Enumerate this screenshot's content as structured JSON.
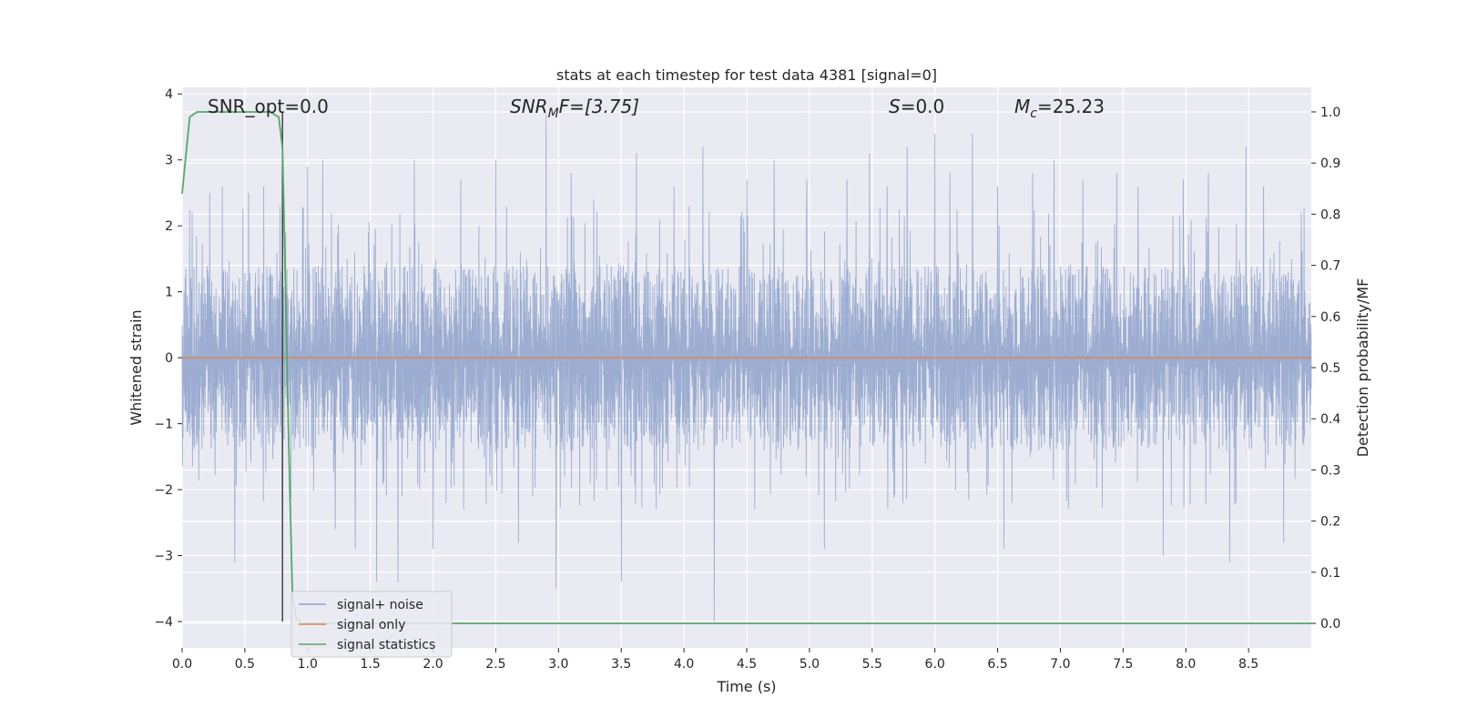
{
  "chart_data": {
    "type": "line",
    "title": "stats at each timestep for test data 4381 [signal=0]",
    "xlabel": "Time (s)",
    "ylabel": "Whitened strain",
    "ylabel_right": "Detection probability/MF",
    "xlim": [
      0.0,
      9.0
    ],
    "ylim": [
      -4.4,
      4.1
    ],
    "ylim_right": [
      -0.048,
      1.048
    ],
    "x_ticks": [
      "0.0",
      "0.5",
      "1.0",
      "1.5",
      "2.0",
      "2.5",
      "3.0",
      "3.5",
      "4.0",
      "4.5",
      "5.0",
      "5.5",
      "6.0",
      "6.5",
      "7.0",
      "7.5",
      "8.0",
      "8.5"
    ],
    "y_ticks": [
      "4",
      "3",
      "2",
      "1",
      "0",
      "−1",
      "−2",
      "−3",
      "−4"
    ],
    "y_ticks_right": [
      "1.0",
      "0.9",
      "0.8",
      "0.7",
      "0.6",
      "0.5",
      "0.4",
      "0.3",
      "0.2",
      "0.1",
      "0.0"
    ],
    "grid": true,
    "legend_position": "lower-left",
    "annotations": {
      "snr_opt": "SNR_opt=0.0",
      "snr_mf_prefix": "SNR",
      "snr_mf_sub": "M",
      "snr_mf_suffix": "F=[3.75]",
      "s_var": "S",
      "s_value": "=0.0",
      "mc_var": "M",
      "mc_sub": "c",
      "mc_value": "=25.23"
    },
    "vertical_marker_x": 0.8,
    "series": [
      {
        "name": "signal+ noise",
        "color": "#8ea2cb",
        "axis": "left",
        "description_values": "dense whitened noise, roughly ±1.4 core band with spikes up to about ±3.7",
        "spikes": [
          [
            0.08,
            2.2
          ],
          [
            0.22,
            2.5
          ],
          [
            0.32,
            2.6
          ],
          [
            0.42,
            -3.1
          ],
          [
            0.53,
            2.5
          ],
          [
            0.65,
            2.6
          ],
          [
            0.78,
            2.3
          ],
          [
            1.0,
            2.9
          ],
          [
            1.12,
            3.0
          ],
          [
            1.22,
            -2.6
          ],
          [
            1.38,
            -2.9
          ],
          [
            1.55,
            -3.4
          ],
          [
            1.72,
            -3.4
          ],
          [
            1.85,
            3.0
          ],
          [
            2.0,
            -2.9
          ],
          [
            2.22,
            2.7
          ],
          [
            2.5,
            3.0
          ],
          [
            2.68,
            -2.8
          ],
          [
            2.9,
            3.7
          ],
          [
            2.98,
            -3.5
          ],
          [
            3.1,
            2.8
          ],
          [
            3.28,
            2.4
          ],
          [
            3.5,
            -3.4
          ],
          [
            3.62,
            3.1
          ],
          [
            3.92,
            2.6
          ],
          [
            4.15,
            3.2
          ],
          [
            4.24,
            -4.0
          ],
          [
            4.5,
            2.7
          ],
          [
            4.72,
            3.0
          ],
          [
            4.98,
            2.7
          ],
          [
            5.12,
            -2.9
          ],
          [
            5.3,
            2.7
          ],
          [
            5.48,
            3.1
          ],
          [
            5.62,
            2.6
          ],
          [
            5.78,
            3.2
          ],
          [
            6.0,
            3.4
          ],
          [
            6.12,
            2.8
          ],
          [
            6.3,
            3.4
          ],
          [
            6.5,
            2.6
          ],
          [
            6.55,
            -2.9
          ],
          [
            6.78,
            2.8
          ],
          [
            6.95,
            3.0
          ],
          [
            7.18,
            2.7
          ],
          [
            7.45,
            2.8
          ],
          [
            7.62,
            2.6
          ],
          [
            7.82,
            -3.0
          ],
          [
            7.98,
            2.7
          ],
          [
            8.18,
            2.8
          ],
          [
            8.35,
            -3.1
          ],
          [
            8.48,
            3.2
          ],
          [
            8.62,
            2.6
          ],
          [
            8.78,
            -2.8
          ],
          [
            8.92,
            2.2
          ]
        ],
        "core_amplitude": 1.4
      },
      {
        "name": "signal only",
        "color": "#dd8452",
        "axis": "left",
        "x": [
          0.0,
          9.0
        ],
        "y": [
          0.0,
          0.0
        ]
      },
      {
        "name": "signal statistics",
        "color": "#55a868",
        "axis": "right",
        "x": [
          0.0,
          0.06,
          0.12,
          0.2,
          0.4,
          0.6,
          0.7,
          0.77,
          0.8,
          0.82,
          0.85,
          0.88,
          0.91,
          0.95,
          1.0,
          2.0,
          4.0,
          6.0,
          8.0,
          9.0
        ],
        "y": [
          0.84,
          0.99,
          1.0,
          1.0,
          1.0,
          1.0,
          1.0,
          0.99,
          0.93,
          0.7,
          0.35,
          0.05,
          0.01,
          0.0,
          0.0,
          0.0,
          0.0,
          0.0,
          0.0,
          0.0
        ]
      }
    ]
  }
}
